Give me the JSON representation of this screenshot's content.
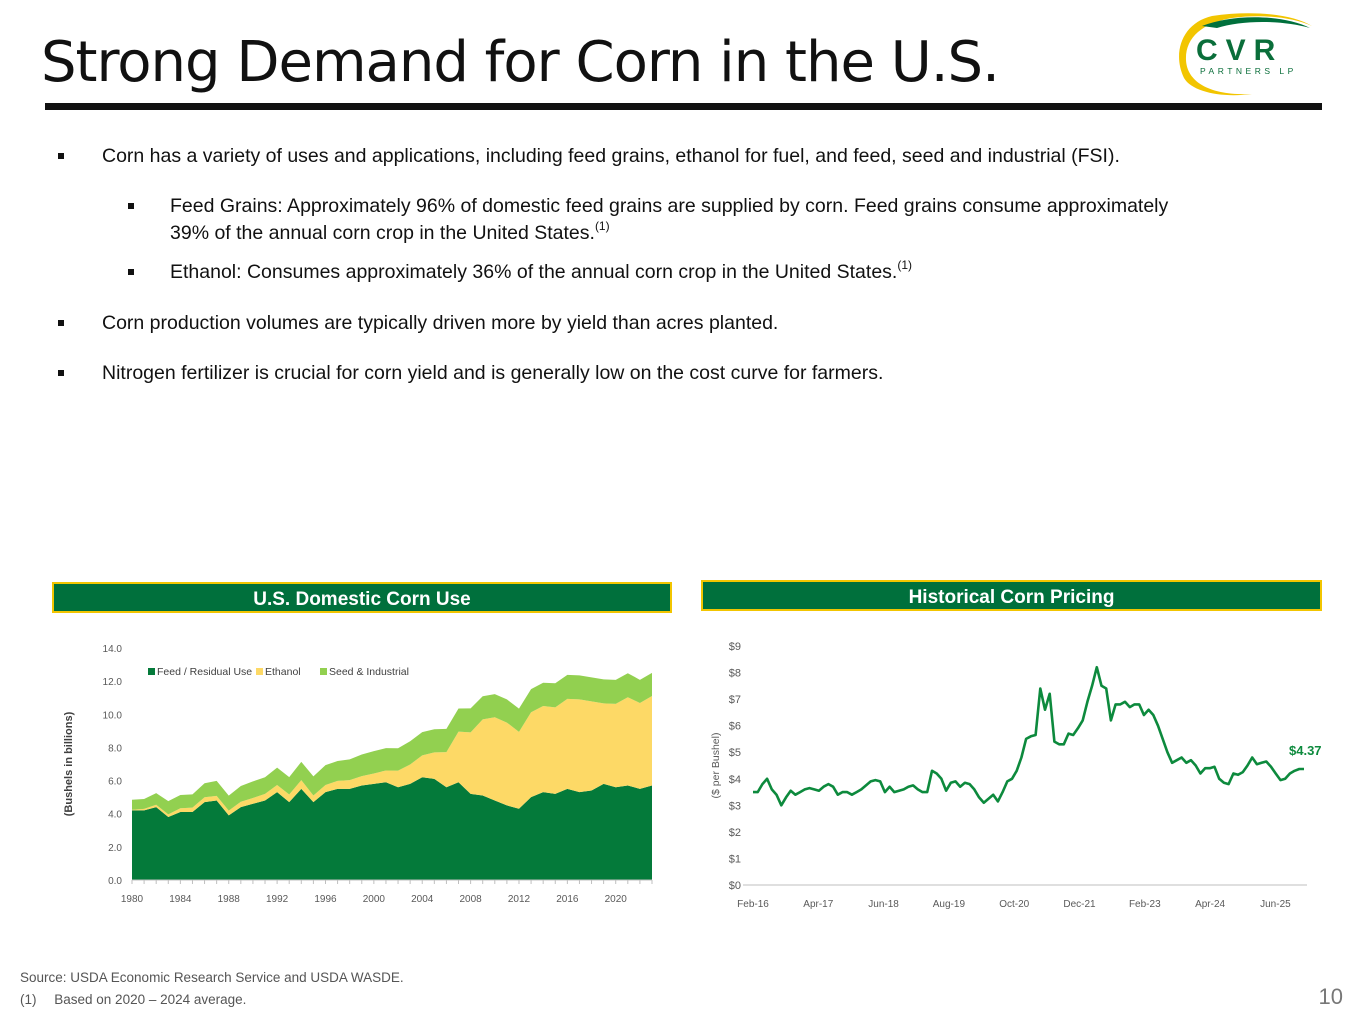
{
  "header": {
    "title": "Strong Demand for Corn in the U.S.",
    "logo_top": "CVR",
    "logo_bottom": "PARTNERS LP"
  },
  "bullets": [
    {
      "text": "Corn has a variety of uses and applications, including feed grains, ethanol for fuel, and feed, seed and industrial (FSI)."
    },
    {
      "text": "Feed Grains: Approximately 96% of domestic feed grains are supplied by corn. Feed grains consume approximately",
      "text2": "39% of the annual corn crop in the United States.",
      "sup": "(1)"
    },
    {
      "text": "Ethanol: Consumes approximately 36% of the annual corn crop in the United States.",
      "sup": "(1)"
    },
    {
      "text": "Corn production volumes are typically driven more by yield than acres planted."
    },
    {
      "text": "Nitrogen fertilizer is crucial for corn yield and is generally low on the cost curve for farmers."
    }
  ],
  "panels": {
    "left_title": "U.S. Domestic Corn Use",
    "right_title": "Historical Corn Pricing"
  },
  "footer": {
    "source": "Source:  USDA Economic Research Service and USDA WASDE.",
    "note_num": "(1)",
    "note": "Based on 2020 – 2024 average.",
    "page": "10"
  },
  "colors": {
    "feed": "#047a3a",
    "ethanol": "#fdd966",
    "seed": "#92d050",
    "price_line": "#0d8a3d",
    "header_bg": "#00703c",
    "header_border": "#f2c500"
  },
  "chart_data": [
    {
      "type": "area",
      "stacked": true,
      "ylabel": "(Bushels in billions)",
      "ylim": [
        0,
        14
      ],
      "yticks": [
        "0.0",
        "2.0",
        "4.0",
        "6.0",
        "8.0",
        "10.0",
        "12.0",
        "14.0"
      ],
      "xticks": [
        "1980",
        "1984",
        "1988",
        "1992",
        "1996",
        "2000",
        "2004",
        "2008",
        "2012",
        "2016",
        "2020"
      ],
      "legend_position": "top-left",
      "x": [
        1980,
        1981,
        1982,
        1983,
        1984,
        1985,
        1986,
        1987,
        1988,
        1989,
        1990,
        1991,
        1992,
        1993,
        1994,
        1995,
        1996,
        1997,
        1998,
        1999,
        2000,
        2001,
        2002,
        2003,
        2004,
        2005,
        2006,
        2007,
        2008,
        2009,
        2010,
        2011,
        2012,
        2013,
        2014,
        2015,
        2016,
        2017,
        2018,
        2019,
        2020,
        2021,
        2022,
        2023
      ],
      "series": [
        {
          "name": "Feed / Residual Use",
          "values": [
            4.2,
            4.2,
            4.4,
            3.8,
            4.1,
            4.1,
            4.7,
            4.8,
            3.9,
            4.4,
            4.6,
            4.8,
            5.3,
            4.7,
            5.5,
            4.7,
            5.3,
            5.5,
            5.5,
            5.7,
            5.8,
            5.9,
            5.6,
            5.8,
            6.2,
            6.1,
            5.6,
            5.9,
            5.2,
            5.1,
            4.8,
            4.5,
            4.3,
            5.0,
            5.3,
            5.2,
            5.5,
            5.3,
            5.4,
            5.8,
            5.6,
            5.7,
            5.5,
            5.7
          ]
        },
        {
          "name": "Ethanol",
          "values": [
            0.04,
            0.09,
            0.14,
            0.16,
            0.23,
            0.27,
            0.29,
            0.28,
            0.29,
            0.32,
            0.35,
            0.4,
            0.43,
            0.46,
            0.53,
            0.4,
            0.43,
            0.48,
            0.53,
            0.57,
            0.63,
            0.71,
            1.0,
            1.17,
            1.32,
            1.6,
            2.12,
            3.05,
            3.71,
            4.59,
            5.02,
            5.0,
            4.64,
            5.12,
            5.2,
            5.22,
            5.43,
            5.6,
            5.38,
            4.86,
            5.03,
            5.33,
            5.18,
            5.4
          ]
        },
        {
          "name": "Seed & Industrial",
          "values": [
            0.6,
            0.6,
            0.7,
            0.8,
            0.8,
            0.8,
            0.85,
            0.9,
            0.9,
            0.95,
            1.0,
            1.0,
            1.05,
            1.05,
            1.1,
            1.15,
            1.2,
            1.2,
            1.25,
            1.3,
            1.35,
            1.35,
            1.35,
            1.4,
            1.4,
            1.4,
            1.4,
            1.4,
            1.45,
            1.4,
            1.4,
            1.4,
            1.4,
            1.4,
            1.4,
            1.45,
            1.45,
            1.45,
            1.45,
            1.45,
            1.45,
            1.45,
            1.4,
            1.4
          ]
        }
      ]
    },
    {
      "type": "line",
      "ylabel": "($ per Bushel)",
      "ylim": [
        0,
        9
      ],
      "yticks": [
        "$0",
        "$1",
        "$2",
        "$3",
        "$4",
        "$5",
        "$6",
        "$7",
        "$8",
        "$9"
      ],
      "xticks": [
        "Feb-16",
        "Apr-17",
        "Jun-18",
        "Aug-19",
        "Oct-20",
        "Dec-21",
        "Feb-23",
        "Apr-24",
        "Jun-25"
      ],
      "last_label": "$4.37",
      "series": [
        {
          "name": "",
          "values": [
            3.5,
            3.5,
            3.8,
            4.0,
            3.6,
            3.4,
            3.0,
            3.3,
            3.55,
            3.4,
            3.5,
            3.6,
            3.65,
            3.6,
            3.55,
            3.7,
            3.8,
            3.7,
            3.4,
            3.5,
            3.5,
            3.4,
            3.5,
            3.6,
            3.75,
            3.9,
            3.95,
            3.9,
            3.5,
            3.7,
            3.5,
            3.55,
            3.6,
            3.7,
            3.75,
            3.6,
            3.5,
            3.5,
            4.3,
            4.2,
            4.0,
            3.55,
            3.85,
            3.9,
            3.7,
            3.85,
            3.8,
            3.6,
            3.3,
            3.1,
            3.25,
            3.4,
            3.15,
            3.5,
            3.9,
            4.0,
            4.3,
            4.8,
            5.5,
            5.6,
            5.65,
            7.4,
            6.6,
            7.2,
            5.4,
            5.3,
            5.3,
            5.7,
            5.65,
            5.9,
            6.2,
            6.9,
            7.5,
            8.2,
            7.5,
            7.4,
            6.2,
            6.8,
            6.8,
            6.9,
            6.7,
            6.8,
            6.8,
            6.4,
            6.6,
            6.4,
            6.0,
            5.5,
            5.0,
            4.6,
            4.7,
            4.8,
            4.6,
            4.7,
            4.5,
            4.2,
            4.4,
            4.4,
            4.45,
            4.0,
            3.85,
            3.8,
            4.2,
            4.15,
            4.25,
            4.5,
            4.8,
            4.55,
            4.6,
            4.65,
            4.45,
            4.2,
            3.95,
            4.0,
            4.2,
            4.3,
            4.37,
            4.37
          ]
        }
      ]
    }
  ]
}
